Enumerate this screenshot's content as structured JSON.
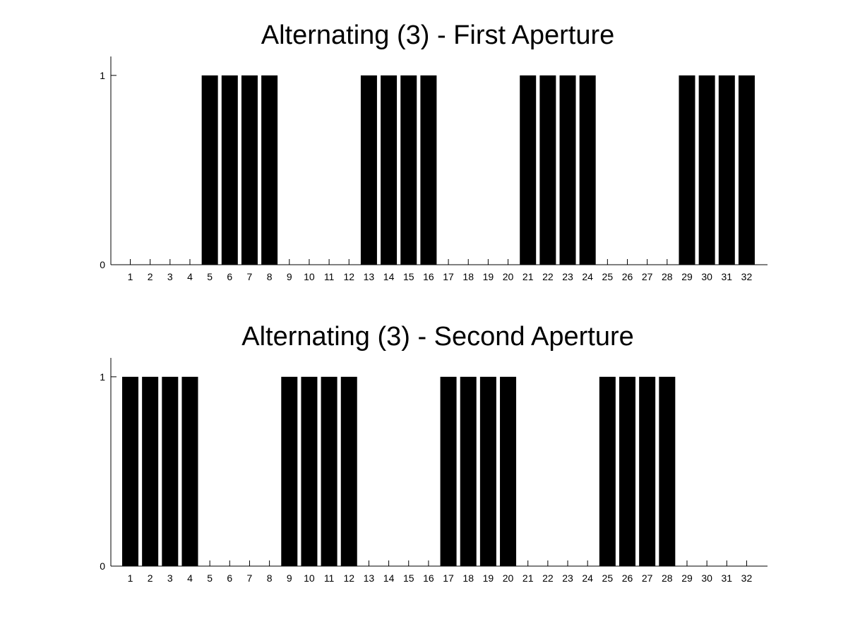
{
  "chart_data": [
    {
      "type": "bar",
      "title": "Alternating (3) - First Aperture",
      "xlabel": "",
      "ylabel": "",
      "categories": [
        "1",
        "2",
        "3",
        "4",
        "5",
        "6",
        "7",
        "8",
        "9",
        "10",
        "11",
        "12",
        "13",
        "14",
        "15",
        "16",
        "17",
        "18",
        "19",
        "20",
        "21",
        "22",
        "23",
        "24",
        "25",
        "26",
        "27",
        "28",
        "29",
        "30",
        "31",
        "32"
      ],
      "values": [
        0,
        0,
        0,
        0,
        1,
        1,
        1,
        1,
        0,
        0,
        0,
        0,
        1,
        1,
        1,
        1,
        0,
        0,
        0,
        0,
        1,
        1,
        1,
        1,
        0,
        0,
        0,
        0,
        1,
        1,
        1,
        1
      ],
      "yticks": [
        "0",
        "1"
      ],
      "ylim": [
        0,
        1.1
      ],
      "bar_color": "#000000",
      "grid": false
    },
    {
      "type": "bar",
      "title": "Alternating (3) - Second Aperture",
      "xlabel": "",
      "ylabel": "",
      "categories": [
        "1",
        "2",
        "3",
        "4",
        "5",
        "6",
        "7",
        "8",
        "9",
        "10",
        "11",
        "12",
        "13",
        "14",
        "15",
        "16",
        "17",
        "18",
        "19",
        "20",
        "21",
        "22",
        "23",
        "24",
        "25",
        "26",
        "27",
        "28",
        "29",
        "30",
        "31",
        "32"
      ],
      "values": [
        1,
        1,
        1,
        1,
        0,
        0,
        0,
        0,
        1,
        1,
        1,
        1,
        0,
        0,
        0,
        0,
        1,
        1,
        1,
        1,
        0,
        0,
        0,
        0,
        1,
        1,
        1,
        1,
        0,
        0,
        0,
        0
      ],
      "yticks": [
        "0",
        "1"
      ],
      "ylim": [
        0,
        1.1
      ],
      "bar_color": "#000000",
      "grid": false
    }
  ]
}
